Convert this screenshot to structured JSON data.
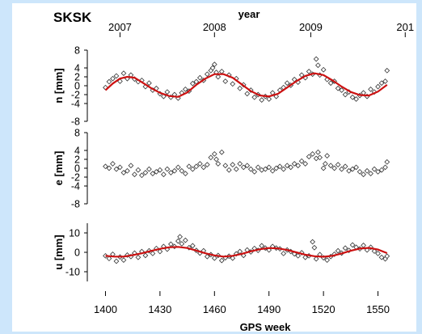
{
  "chart_data": [
    {
      "type": "scatter",
      "station": "SKSK",
      "top_axis_label": "year",
      "top_ticks": [
        {
          "x": 1408,
          "label": "2007"
        },
        {
          "x": 1460,
          "label": "2008"
        },
        {
          "x": 1513,
          "label": "2009"
        },
        {
          "x": 1565,
          "label": "201"
        }
      ],
      "ylabel": "n [mm]",
      "ylim": [
        -8,
        8
      ],
      "yticks": [
        8,
        4,
        2,
        0,
        -2,
        -4,
        -8
      ],
      "model_line_color": "#cc1111",
      "model": [
        [
          1400,
          -1.0
        ],
        [
          1404,
          0.5
        ],
        [
          1408,
          1.6
        ],
        [
          1412,
          2.0
        ],
        [
          1416,
          1.8
        ],
        [
          1420,
          0.8
        ],
        [
          1425,
          -0.5
        ],
        [
          1430,
          -1.6
        ],
        [
          1435,
          -2.3
        ],
        [
          1440,
          -2.5
        ],
        [
          1445,
          -1.5
        ],
        [
          1450,
          0.2
        ],
        [
          1455,
          1.6
        ],
        [
          1460,
          2.6
        ],
        [
          1465,
          2.6
        ],
        [
          1470,
          1.8
        ],
        [
          1475,
          0.3
        ],
        [
          1480,
          -1.2
        ],
        [
          1485,
          -2.2
        ],
        [
          1490,
          -2.4
        ],
        [
          1495,
          -1.8
        ],
        [
          1500,
          -0.4
        ],
        [
          1505,
          1.0
        ],
        [
          1510,
          2.2
        ],
        [
          1515,
          2.8
        ],
        [
          1520,
          2.4
        ],
        [
          1525,
          1.2
        ],
        [
          1530,
          -0.2
        ],
        [
          1535,
          -1.4
        ],
        [
          1540,
          -2.1
        ],
        [
          1545,
          -2.2
        ],
        [
          1550,
          -1.3
        ],
        [
          1555,
          0.2
        ]
      ],
      "points": [
        [
          1400,
          -0.4
        ],
        [
          1402,
          0.9
        ],
        [
          1404,
          1.6
        ],
        [
          1406,
          2.2
        ],
        [
          1408,
          1.0
        ],
        [
          1410,
          2.8
        ],
        [
          1412,
          1.6
        ],
        [
          1414,
          2.4
        ],
        [
          1416,
          1.5
        ],
        [
          1418,
          0.9
        ],
        [
          1420,
          1.2
        ],
        [
          1422,
          -0.2
        ],
        [
          1424,
          0.6
        ],
        [
          1426,
          -1.0
        ],
        [
          1428,
          -0.6
        ],
        [
          1430,
          -1.8
        ],
        [
          1432,
          -2.4
        ],
        [
          1434,
          -1.4
        ],
        [
          1436,
          -2.6
        ],
        [
          1438,
          -2.0
        ],
        [
          1440,
          -2.8
        ],
        [
          1442,
          -1.6
        ],
        [
          1444,
          -0.8
        ],
        [
          1446,
          -1.2
        ],
        [
          1448,
          0.5
        ],
        [
          1450,
          0.9
        ],
        [
          1452,
          1.8
        ],
        [
          1454,
          1.2
        ],
        [
          1456,
          2.6
        ],
        [
          1458,
          3.4
        ],
        [
          1459,
          4.0
        ],
        [
          1460,
          4.8
        ],
        [
          1461,
          3.0
        ],
        [
          1462,
          2.0
        ],
        [
          1464,
          3.2
        ],
        [
          1466,
          1.0
        ],
        [
          1468,
          2.4
        ],
        [
          1470,
          0.4
        ],
        [
          1472,
          1.6
        ],
        [
          1474,
          -0.6
        ],
        [
          1476,
          0.2
        ],
        [
          1478,
          -1.8
        ],
        [
          1480,
          -1.0
        ],
        [
          1482,
          -2.6
        ],
        [
          1484,
          -2.0
        ],
        [
          1486,
          -3.2
        ],
        [
          1488,
          -2.4
        ],
        [
          1490,
          -3.0
        ],
        [
          1492,
          -1.6
        ],
        [
          1494,
          -2.4
        ],
        [
          1496,
          -1.0
        ],
        [
          1498,
          -0.4
        ],
        [
          1500,
          0.6
        ],
        [
          1502,
          0.1
        ],
        [
          1504,
          1.4
        ],
        [
          1506,
          0.8
        ],
        [
          1508,
          2.4
        ],
        [
          1510,
          1.8
        ],
        [
          1512,
          3.2
        ],
        [
          1514,
          2.6
        ],
        [
          1516,
          6.0
        ],
        [
          1517,
          4.6
        ],
        [
          1518,
          2.4
        ],
        [
          1520,
          3.6
        ],
        [
          1522,
          1.4
        ],
        [
          1524,
          0.6
        ],
        [
          1526,
          1.0
        ],
        [
          1528,
          -0.6
        ],
        [
          1530,
          -1.0
        ],
        [
          1532,
          -2.0
        ],
        [
          1534,
          -1.4
        ],
        [
          1536,
          -2.6
        ],
        [
          1538,
          -3.0
        ],
        [
          1540,
          -2.2
        ],
        [
          1542,
          -1.6
        ],
        [
          1544,
          -2.4
        ],
        [
          1546,
          -0.8
        ],
        [
          1548,
          -1.4
        ],
        [
          1550,
          -0.2
        ],
        [
          1552,
          0.6
        ],
        [
          1554,
          1.0
        ],
        [
          1555,
          3.4
        ]
      ]
    },
    {
      "type": "scatter",
      "ylabel": "e [mm]",
      "ylim": [
        -8,
        8
      ],
      "yticks": [
        8,
        4,
        2,
        0,
        -2,
        -4,
        -8
      ],
      "points": [
        [
          1400,
          0.4
        ],
        [
          1402,
          0.0
        ],
        [
          1404,
          1.0
        ],
        [
          1406,
          -0.2
        ],
        [
          1408,
          0.2
        ],
        [
          1410,
          -1.0
        ],
        [
          1412,
          -0.6
        ],
        [
          1414,
          0.6
        ],
        [
          1416,
          -1.4
        ],
        [
          1418,
          -0.4
        ],
        [
          1420,
          -1.6
        ],
        [
          1422,
          -1.0
        ],
        [
          1424,
          -0.2
        ],
        [
          1426,
          -1.2
        ],
        [
          1428,
          -0.8
        ],
        [
          1430,
          -0.4
        ],
        [
          1432,
          -1.4
        ],
        [
          1434,
          -0.2
        ],
        [
          1436,
          -1.0
        ],
        [
          1438,
          -0.6
        ],
        [
          1440,
          0.2
        ],
        [
          1442,
          -0.6
        ],
        [
          1444,
          -1.2
        ],
        [
          1446,
          0.4
        ],
        [
          1448,
          -0.2
        ],
        [
          1450,
          0.4
        ],
        [
          1452,
          1.0
        ],
        [
          1454,
          0.2
        ],
        [
          1456,
          0.8
        ],
        [
          1458,
          2.4
        ],
        [
          1460,
          3.2
        ],
        [
          1461,
          2.0
        ],
        [
          1462,
          1.0
        ],
        [
          1464,
          3.6
        ],
        [
          1466,
          0.6
        ],
        [
          1468,
          -0.4
        ],
        [
          1470,
          0.8
        ],
        [
          1472,
          -0.2
        ],
        [
          1474,
          1.0
        ],
        [
          1476,
          0.2
        ],
        [
          1478,
          0.6
        ],
        [
          1480,
          -0.2
        ],
        [
          1482,
          -0.8
        ],
        [
          1484,
          0.2
        ],
        [
          1486,
          -0.4
        ],
        [
          1488,
          -0.2
        ],
        [
          1490,
          0.2
        ],
        [
          1492,
          -0.6
        ],
        [
          1494,
          0.0
        ],
        [
          1496,
          0.4
        ],
        [
          1498,
          -0.2
        ],
        [
          1500,
          0.6
        ],
        [
          1502,
          0.2
        ],
        [
          1504,
          1.0
        ],
        [
          1506,
          0.6
        ],
        [
          1508,
          1.6
        ],
        [
          1510,
          1.0
        ],
        [
          1512,
          2.6
        ],
        [
          1514,
          3.2
        ],
        [
          1516,
          2.2
        ],
        [
          1517,
          3.6
        ],
        [
          1518,
          2.4
        ],
        [
          1520,
          0.0
        ],
        [
          1521,
          1.0
        ],
        [
          1522,
          2.8
        ],
        [
          1524,
          0.6
        ],
        [
          1526,
          0.0
        ],
        [
          1528,
          0.8
        ],
        [
          1530,
          -0.2
        ],
        [
          1532,
          0.4
        ],
        [
          1534,
          -0.6
        ],
        [
          1536,
          -0.2
        ],
        [
          1538,
          0.2
        ],
        [
          1540,
          -0.8
        ],
        [
          1542,
          -1.4
        ],
        [
          1544,
          -0.6
        ],
        [
          1546,
          -1.2
        ],
        [
          1548,
          -0.2
        ],
        [
          1550,
          -0.8
        ],
        [
          1552,
          -0.4
        ],
        [
          1554,
          0.2
        ],
        [
          1555,
          1.4
        ]
      ]
    },
    {
      "type": "scatter",
      "ylabel": "u [mm]",
      "ylim": [
        -15,
        15
      ],
      "yticks": [
        10,
        0,
        -10
      ],
      "model_line_color": "#cc1111",
      "model": [
        [
          1400,
          -1.8
        ],
        [
          1405,
          -2.2
        ],
        [
          1410,
          -2.2
        ],
        [
          1415,
          -1.4
        ],
        [
          1420,
          -0.5
        ],
        [
          1425,
          0.7
        ],
        [
          1430,
          1.8
        ],
        [
          1435,
          2.6
        ],
        [
          1440,
          2.8
        ],
        [
          1445,
          2.2
        ],
        [
          1450,
          0.9
        ],
        [
          1455,
          -0.5
        ],
        [
          1460,
          -1.6
        ],
        [
          1465,
          -2.2
        ],
        [
          1470,
          -1.8
        ],
        [
          1475,
          -0.8
        ],
        [
          1480,
          0.5
        ],
        [
          1485,
          1.6
        ],
        [
          1490,
          2.2
        ],
        [
          1495,
          2.0
        ],
        [
          1500,
          1.2
        ],
        [
          1505,
          0.0
        ],
        [
          1510,
          -1.2
        ],
        [
          1515,
          -2.0
        ],
        [
          1520,
          -2.3
        ],
        [
          1525,
          -1.8
        ],
        [
          1530,
          -0.6
        ],
        [
          1535,
          0.8
        ],
        [
          1540,
          1.9
        ],
        [
          1545,
          2.3
        ],
        [
          1550,
          1.4
        ],
        [
          1555,
          -0.4
        ]
      ],
      "points": [
        [
          1400,
          -1.8
        ],
        [
          1402,
          -3.2
        ],
        [
          1404,
          -1.0
        ],
        [
          1406,
          -4.6
        ],
        [
          1408,
          -2.4
        ],
        [
          1410,
          -4.0
        ],
        [
          1412,
          -1.4
        ],
        [
          1414,
          -2.2
        ],
        [
          1416,
          -0.4
        ],
        [
          1418,
          -2.6
        ],
        [
          1420,
          0.4
        ],
        [
          1422,
          -1.6
        ],
        [
          1424,
          0.8
        ],
        [
          1426,
          -0.6
        ],
        [
          1428,
          2.0
        ],
        [
          1430,
          0.4
        ],
        [
          1432,
          3.0
        ],
        [
          1434,
          1.6
        ],
        [
          1436,
          4.2
        ],
        [
          1438,
          3.0
        ],
        [
          1440,
          5.8
        ],
        [
          1441,
          8.0
        ],
        [
          1442,
          4.4
        ],
        [
          1444,
          6.2
        ],
        [
          1446,
          2.4
        ],
        [
          1448,
          3.4
        ],
        [
          1450,
          1.0
        ],
        [
          1452,
          -0.4
        ],
        [
          1454,
          0.8
        ],
        [
          1456,
          -2.2
        ],
        [
          1458,
          -1.2
        ],
        [
          1460,
          -3.0
        ],
        [
          1462,
          -1.6
        ],
        [
          1464,
          -4.2
        ],
        [
          1466,
          -2.8
        ],
        [
          1468,
          -2.0
        ],
        [
          1470,
          -3.0
        ],
        [
          1472,
          -0.8
        ],
        [
          1474,
          0.4
        ],
        [
          1476,
          -1.6
        ],
        [
          1478,
          1.2
        ],
        [
          1480,
          0.2
        ],
        [
          1482,
          2.0
        ],
        [
          1484,
          1.0
        ],
        [
          1486,
          3.4
        ],
        [
          1488,
          2.2
        ],
        [
          1490,
          1.2
        ],
        [
          1492,
          3.0
        ],
        [
          1494,
          2.2
        ],
        [
          1496,
          1.8
        ],
        [
          1498,
          -0.6
        ],
        [
          1500,
          1.2
        ],
        [
          1502,
          0.4
        ],
        [
          1504,
          -0.8
        ],
        [
          1506,
          -1.8
        ],
        [
          1508,
          -0.2
        ],
        [
          1510,
          -2.6
        ],
        [
          1512,
          -1.8
        ],
        [
          1514,
          5.4
        ],
        [
          1515,
          2.4
        ],
        [
          1516,
          -3.4
        ],
        [
          1518,
          -1.2
        ],
        [
          1520,
          -2.8
        ],
        [
          1522,
          -4.0
        ],
        [
          1524,
          -2.2
        ],
        [
          1526,
          -1.0
        ],
        [
          1528,
          0.8
        ],
        [
          1530,
          -0.4
        ],
        [
          1532,
          2.2
        ],
        [
          1534,
          1.0
        ],
        [
          1536,
          3.8
        ],
        [
          1538,
          2.6
        ],
        [
          1540,
          1.8
        ],
        [
          1542,
          3.6
        ],
        [
          1544,
          1.2
        ],
        [
          1546,
          2.6
        ],
        [
          1548,
          0.6
        ],
        [
          1550,
          -0.6
        ],
        [
          1552,
          -2.6
        ],
        [
          1554,
          -3.4
        ],
        [
          1555,
          -2.0
        ]
      ]
    }
  ],
  "xaxis": {
    "label": "GPS week",
    "xlim": [
      1390,
      1568
    ],
    "ticks": [
      1400,
      1430,
      1460,
      1490,
      1520,
      1550
    ]
  }
}
